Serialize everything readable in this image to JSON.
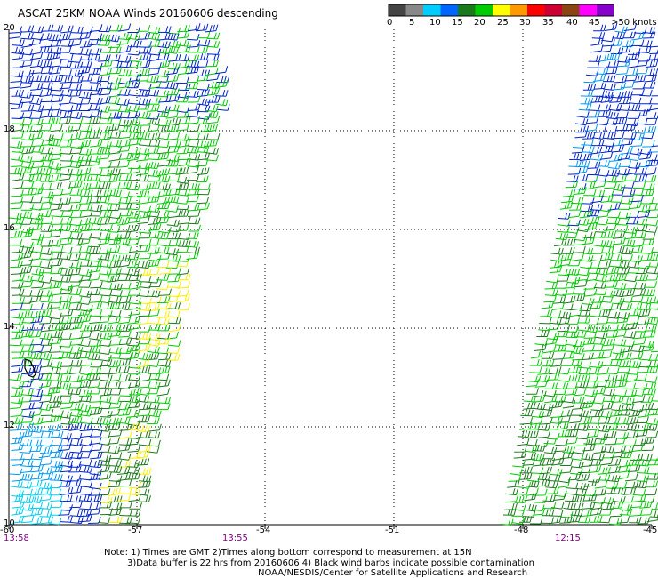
{
  "title": "ASCAT 25KM NOAA Winds 20160606 descending",
  "legend": {
    "labels": [
      "0",
      "5",
      "10",
      "15",
      "20",
      "25",
      "30",
      "35",
      "40",
      "45",
      ">50 knots"
    ],
    "colors": [
      "#444444",
      "#888888",
      "#00ccff",
      "#0066ff",
      "#1a7a1a",
      "#00cc00",
      "#ffff00",
      "#ff9900",
      "#ff0000",
      "#cc0033",
      "#8b4513",
      "#ff00ff",
      "#8800cc"
    ]
  },
  "axes": {
    "lon_labels": [
      "-60",
      "-57",
      "-54",
      "-51",
      "-48",
      "-45"
    ],
    "lat_labels": [
      "20",
      "18",
      "16",
      "14",
      "12",
      "10"
    ]
  },
  "times": [
    "13:58",
    "13:55",
    "12:15"
  ],
  "notes": {
    "line1": "Note: 1) Times are GMT 2)Times along bottom correspond to measurement at 15N",
    "line2": "3)Data buffer is 22 hrs from 20160606 4) Black wind barbs indicate possible contamination",
    "line3": "NOAA/NESDIS/Center for Satellite Applications and Research"
  }
}
